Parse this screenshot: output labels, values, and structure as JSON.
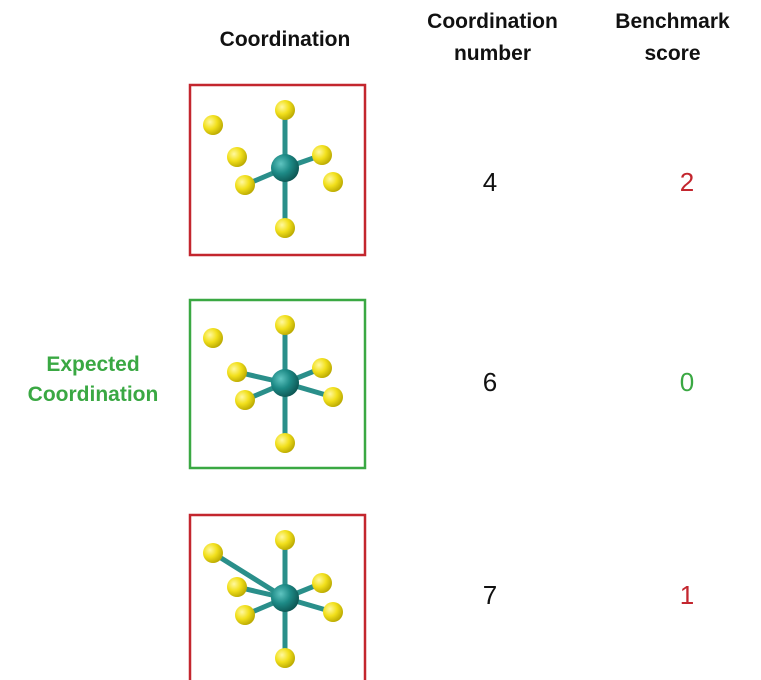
{
  "header": {
    "coordination": "Coordination",
    "coordination_number": "Coordination number",
    "benchmark_score": "Benchmark score"
  },
  "expected_label": "Expected Coordination",
  "rows": [
    {
      "coordination_number": 4,
      "benchmark_score": 2
    },
    {
      "coordination_number": 6,
      "benchmark_score": 0
    },
    {
      "coordination_number": 7,
      "benchmark_score": 1
    }
  ]
}
